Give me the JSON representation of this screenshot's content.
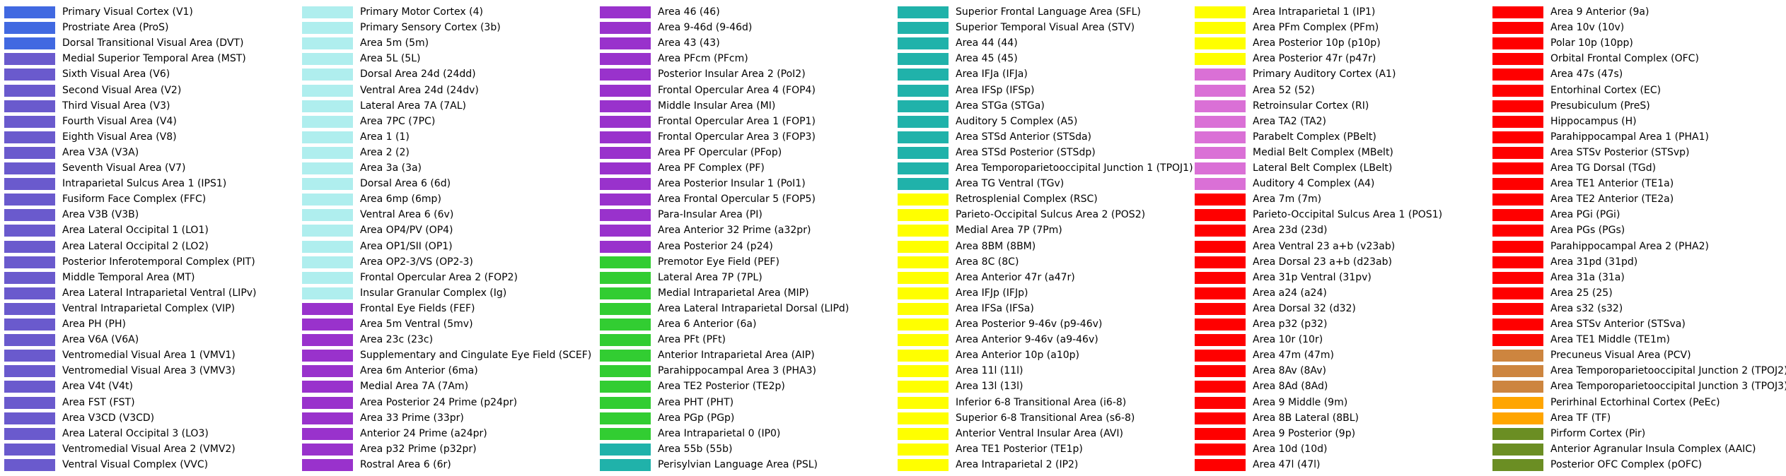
{
  "colors": {
    "royal_blue": "#4169e1",
    "slate_blue": "#6a5acd",
    "pale_turquoise": "#afeeee",
    "dark_orchid": "#9932cc",
    "lime_green": "#32cd32",
    "light_sea_green": "#20b2aa",
    "yellow": "#ffff00",
    "orchid": "#da70d6",
    "red": "#ff0000",
    "peru": "#cd853f",
    "orange": "#ffa500",
    "olive_drab": "#6b8e23"
  },
  "columns": [
    [
      {
        "label": "Primary Visual Cortex (V1)",
        "color": "#4169e1"
      },
      {
        "label": "Prostriate Area (ProS)",
        "color": "#4169e1"
      },
      {
        "label": "Dorsal Transitional Visual Area (DVT)",
        "color": "#4169e1"
      },
      {
        "label": "Medial Superior Temporal Area (MST)",
        "color": "#6a5acd"
      },
      {
        "label": "Sixth Visual Area (V6)",
        "color": "#6a5acd"
      },
      {
        "label": "Second Visual Area (V2)",
        "color": "#6a5acd"
      },
      {
        "label": "Third Visual Area (V3)",
        "color": "#6a5acd"
      },
      {
        "label": "Fourth Visual Area (V4)",
        "color": "#6a5acd"
      },
      {
        "label": "Eighth Visual Area (V8)",
        "color": "#6a5acd"
      },
      {
        "label": "Area V3A (V3A)",
        "color": "#6a5acd"
      },
      {
        "label": "Seventh Visual Area (V7)",
        "color": "#6a5acd"
      },
      {
        "label": "Intraparietal Sulcus Area 1 (IPS1)",
        "color": "#6a5acd"
      },
      {
        "label": "Fusiform Face Complex (FFC)",
        "color": "#6a5acd"
      },
      {
        "label": "Area V3B (V3B)",
        "color": "#6a5acd"
      },
      {
        "label": "Area Lateral Occipital 1 (LO1)",
        "color": "#6a5acd"
      },
      {
        "label": "Area Lateral Occipital 2 (LO2)",
        "color": "#6a5acd"
      },
      {
        "label": "Posterior Inferotemporal Complex (PIT)",
        "color": "#6a5acd"
      },
      {
        "label": "Middle Temporal Area (MT)",
        "color": "#6a5acd"
      },
      {
        "label": "Area Lateral Intraparietal Ventral (LIPv)",
        "color": "#6a5acd"
      },
      {
        "label": "Ventral Intraparietal Complex (VIP)",
        "color": "#6a5acd"
      },
      {
        "label": "Area PH (PH)",
        "color": "#6a5acd"
      },
      {
        "label": "Area V6A (V6A)",
        "color": "#6a5acd"
      },
      {
        "label": "Ventromedial Visual Area 1 (VMV1)",
        "color": "#6a5acd"
      },
      {
        "label": "Ventromedial Visual Area 3 (VMV3)",
        "color": "#6a5acd"
      },
      {
        "label": "Area V4t (V4t)",
        "color": "#6a5acd"
      },
      {
        "label": "Area FST (FST)",
        "color": "#6a5acd"
      },
      {
        "label": "Area V3CD (V3CD)",
        "color": "#6a5acd"
      },
      {
        "label": "Area Lateral Occipital 3 (LO3)",
        "color": "#6a5acd"
      },
      {
        "label": "Ventromedial Visual Area 2 (VMV2)",
        "color": "#6a5acd"
      },
      {
        "label": "Ventral Visual Complex (VVC)",
        "color": "#6a5acd"
      }
    ],
    [
      {
        "label": "Primary Motor Cortex (4)",
        "color": "#afeeee"
      },
      {
        "label": "Primary Sensory Cortex (3b)",
        "color": "#afeeee"
      },
      {
        "label": "Area 5m (5m)",
        "color": "#afeeee"
      },
      {
        "label": "Area 5L (5L)",
        "color": "#afeeee"
      },
      {
        "label": "Dorsal Area 24d (24dd)",
        "color": "#afeeee"
      },
      {
        "label": "Ventral Area 24d (24dv)",
        "color": "#afeeee"
      },
      {
        "label": "Lateral Area 7A (7AL)",
        "color": "#afeeee"
      },
      {
        "label": "Area 7PC (7PC)",
        "color": "#afeeee"
      },
      {
        "label": "Area 1 (1)",
        "color": "#afeeee"
      },
      {
        "label": "Area 2 (2)",
        "color": "#afeeee"
      },
      {
        "label": "Area 3a (3a)",
        "color": "#afeeee"
      },
      {
        "label": "Dorsal Area 6 (6d)",
        "color": "#afeeee"
      },
      {
        "label": "Area 6mp (6mp)",
        "color": "#afeeee"
      },
      {
        "label": "Ventral Area 6 (6v)",
        "color": "#afeeee"
      },
      {
        "label": "Area OP4/PV (OP4)",
        "color": "#afeeee"
      },
      {
        "label": "Area OP1/SII (OP1)",
        "color": "#afeeee"
      },
      {
        "label": "Area OP2-3/VS (OP2-3)",
        "color": "#afeeee"
      },
      {
        "label": "Frontal Opercular Area 2 (FOP2)",
        "color": "#afeeee"
      },
      {
        "label": "Insular Granular Complex (Ig)",
        "color": "#afeeee"
      },
      {
        "label": "Frontal Eye Fields (FEF)",
        "color": "#9932cc"
      },
      {
        "label": "Area 5m Ventral (5mv)",
        "color": "#9932cc"
      },
      {
        "label": "Area 23c (23c)",
        "color": "#9932cc"
      },
      {
        "label": "Supplementary and Cingulate Eye Field (SCEF)",
        "color": "#9932cc"
      },
      {
        "label": "Area 6m Anterior (6ma)",
        "color": "#9932cc"
      },
      {
        "label": "Medial Area 7A (7Am)",
        "color": "#9932cc"
      },
      {
        "label": "Area Posterior 24 Prime (p24pr)",
        "color": "#9932cc"
      },
      {
        "label": "Area 33 Prime (33pr)",
        "color": "#9932cc"
      },
      {
        "label": "Anterior 24 Prime (a24pr)",
        "color": "#9932cc"
      },
      {
        "label": "Area p32 Prime (p32pr)",
        "color": "#9932cc"
      },
      {
        "label": "Rostral Area 6 (6r)",
        "color": "#9932cc"
      }
    ],
    [
      {
        "label": "Area 46 (46)",
        "color": "#9932cc"
      },
      {
        "label": "Area 9-46d (9-46d)",
        "color": "#9932cc"
      },
      {
        "label": "Area 43 (43)",
        "color": "#9932cc"
      },
      {
        "label": "Area PFcm (PFcm)",
        "color": "#9932cc"
      },
      {
        "label": "Posterior Insular Area 2 (PoI2)",
        "color": "#9932cc"
      },
      {
        "label": "Frontal Opercular Area 4 (FOP4)",
        "color": "#9932cc"
      },
      {
        "label": "Middle Insular Area (MI)",
        "color": "#9932cc"
      },
      {
        "label": "Frontal Opercular Area 1 (FOP1)",
        "color": "#9932cc"
      },
      {
        "label": "Frontal Opercular Area 3 (FOP3)",
        "color": "#9932cc"
      },
      {
        "label": "Area PF Opercular (PFop)",
        "color": "#9932cc"
      },
      {
        "label": "Area PF Complex (PF)",
        "color": "#9932cc"
      },
      {
        "label": "Area Posterior Insular 1 (PoI1)",
        "color": "#9932cc"
      },
      {
        "label": "Area Frontal Opercular 5 (FOP5)",
        "color": "#9932cc"
      },
      {
        "label": "Para-Insular Area (PI)",
        "color": "#9932cc"
      },
      {
        "label": "Area Anterior 32 Prime (a32pr)",
        "color": "#9932cc"
      },
      {
        "label": "Area Posterior 24 (p24)",
        "color": "#9932cc"
      },
      {
        "label": "Premotor Eye Field (PEF)",
        "color": "#32cd32"
      },
      {
        "label": "Lateral Area 7P (7PL)",
        "color": "#32cd32"
      },
      {
        "label": "Medial Intraparietal Area (MIP)",
        "color": "#32cd32"
      },
      {
        "label": "Area Lateral Intraparietal Dorsal (LIPd)",
        "color": "#32cd32"
      },
      {
        "label": "Area 6 Anterior (6a)",
        "color": "#32cd32"
      },
      {
        "label": "Area PFt (PFt)",
        "color": "#32cd32"
      },
      {
        "label": "Anterior Intraparietal Area (AIP)",
        "color": "#32cd32"
      },
      {
        "label": "Parahippocampal Area 3 (PHA3)",
        "color": "#32cd32"
      },
      {
        "label": "Area TE2 Posterior (TE2p)",
        "color": "#32cd32"
      },
      {
        "label": "Area PHT (PHT)",
        "color": "#32cd32"
      },
      {
        "label": "Area PGp (PGp)",
        "color": "#32cd32"
      },
      {
        "label": "Area Intraparietal 0 (IP0)",
        "color": "#32cd32"
      },
      {
        "label": "Area 55b (55b)",
        "color": "#20b2aa"
      },
      {
        "label": "Perisylvian Language Area (PSL)",
        "color": "#20b2aa"
      }
    ],
    [
      {
        "label": "Superior Frontal Language Area (SFL)",
        "color": "#20b2aa"
      },
      {
        "label": "Superior Temporal Visual Area (STV)",
        "color": "#20b2aa"
      },
      {
        "label": "Area 44 (44)",
        "color": "#20b2aa"
      },
      {
        "label": "Area 45 (45)",
        "color": "#20b2aa"
      },
      {
        "label": "Area IFJa (IFJa)",
        "color": "#20b2aa"
      },
      {
        "label": "Area IFSp (IFSp)",
        "color": "#20b2aa"
      },
      {
        "label": "Area STGa (STGa)",
        "color": "#20b2aa"
      },
      {
        "label": "Auditory 5 Complex (A5)",
        "color": "#20b2aa"
      },
      {
        "label": "Area STSd Anterior (STSda)",
        "color": "#20b2aa"
      },
      {
        "label": "Area STSd Posterior (STSdp)",
        "color": "#20b2aa"
      },
      {
        "label": "Area Temporoparietooccipital Junction 1 (TPOJ1)",
        "color": "#20b2aa"
      },
      {
        "label": "Area TG Ventral (TGv)",
        "color": "#20b2aa"
      },
      {
        "label": "Retrosplenial Complex (RSC)",
        "color": "#ffff00"
      },
      {
        "label": "Parieto-Occipital Sulcus Area 2 (POS2)",
        "color": "#ffff00"
      },
      {
        "label": "Medial Area 7P (7Pm)",
        "color": "#ffff00"
      },
      {
        "label": "Area 8BM (8BM)",
        "color": "#ffff00"
      },
      {
        "label": "Area 8C (8C)",
        "color": "#ffff00"
      },
      {
        "label": "Area Anterior 47r (a47r)",
        "color": "#ffff00"
      },
      {
        "label": "Area IFJp (IFJp)",
        "color": "#ffff00"
      },
      {
        "label": "Area IFSa (IFSa)",
        "color": "#ffff00"
      },
      {
        "label": "Area Posterior 9-46v (p9-46v)",
        "color": "#ffff00"
      },
      {
        "label": "Area Anterior 9-46v (a9-46v)",
        "color": "#ffff00"
      },
      {
        "label": "Area Anterior 10p (a10p)",
        "color": "#ffff00"
      },
      {
        "label": "Area 11l (11l)",
        "color": "#ffff00"
      },
      {
        "label": "Area 13l (13l)",
        "color": "#ffff00"
      },
      {
        "label": "Inferior 6-8 Transitional Area (i6-8)",
        "color": "#ffff00"
      },
      {
        "label": "Superior 6-8 Transitional Area (s6-8)",
        "color": "#ffff00"
      },
      {
        "label": "Anterior Ventral Insular Area (AVI)",
        "color": "#ffff00"
      },
      {
        "label": "Area TE1 Posterior (TE1p)",
        "color": "#ffff00"
      },
      {
        "label": "Area Intraparietal 2 (IP2)",
        "color": "#ffff00"
      }
    ],
    [
      {
        "label": "Area Intraparietal 1 (IP1)",
        "color": "#ffff00"
      },
      {
        "label": "Area PFm Complex (PFm)",
        "color": "#ffff00"
      },
      {
        "label": "Area Posterior 10p (p10p)",
        "color": "#ffff00"
      },
      {
        "label": "Area Posterior 47r (p47r)",
        "color": "#ffff00"
      },
      {
        "label": "Primary Auditory Cortex (A1)",
        "color": "#da70d6"
      },
      {
        "label": "Area 52 (52)",
        "color": "#da70d6"
      },
      {
        "label": "Retroinsular Cortex (RI)",
        "color": "#da70d6"
      },
      {
        "label": "Area TA2 (TA2)",
        "color": "#da70d6"
      },
      {
        "label": "Parabelt Complex (PBelt)",
        "color": "#da70d6"
      },
      {
        "label": "Medial Belt Complex (MBelt)",
        "color": "#da70d6"
      },
      {
        "label": "Lateral Belt Complex (LBelt)",
        "color": "#da70d6"
      },
      {
        "label": "Auditory 4 Complex (A4)",
        "color": "#da70d6"
      },
      {
        "label": "Area 7m (7m)",
        "color": "#ff0000"
      },
      {
        "label": "Parieto-Occipital Sulcus Area 1 (POS1)",
        "color": "#ff0000"
      },
      {
        "label": "Area 23d (23d)",
        "color": "#ff0000"
      },
      {
        "label": "Area Ventral 23 a+b (v23ab)",
        "color": "#ff0000"
      },
      {
        "label": "Area Dorsal 23 a+b (d23ab)",
        "color": "#ff0000"
      },
      {
        "label": "Area 31p Ventral (31pv)",
        "color": "#ff0000"
      },
      {
        "label": "Area a24 (a24)",
        "color": "#ff0000"
      },
      {
        "label": "Area Dorsal 32 (d32)",
        "color": "#ff0000"
      },
      {
        "label": "Area p32 (p32)",
        "color": "#ff0000"
      },
      {
        "label": "Area 10r (10r)",
        "color": "#ff0000"
      },
      {
        "label": "Area 47m (47m)",
        "color": "#ff0000"
      },
      {
        "label": "Area 8Av (8Av)",
        "color": "#ff0000"
      },
      {
        "label": "Area 8Ad (8Ad)",
        "color": "#ff0000"
      },
      {
        "label": "Area 9 Middle (9m)",
        "color": "#ff0000"
      },
      {
        "label": "Area 8B Lateral (8BL)",
        "color": "#ff0000"
      },
      {
        "label": "Area 9 Posterior (9p)",
        "color": "#ff0000"
      },
      {
        "label": "Area 10d (10d)",
        "color": "#ff0000"
      },
      {
        "label": "Area 47l (47l)",
        "color": "#ff0000"
      }
    ],
    [
      {
        "label": "Area 9 Anterior (9a)",
        "color": "#ff0000"
      },
      {
        "label": "Area 10v (10v)",
        "color": "#ff0000"
      },
      {
        "label": "Polar 10p (10pp)",
        "color": "#ff0000"
      },
      {
        "label": "Orbital Frontal Complex (OFC)",
        "color": "#ff0000"
      },
      {
        "label": "Area 47s (47s)",
        "color": "#ff0000"
      },
      {
        "label": "Entorhinal Cortex (EC)",
        "color": "#ff0000"
      },
      {
        "label": "Presubiculum (PreS)",
        "color": "#ff0000"
      },
      {
        "label": "Hippocampus (H)",
        "color": "#ff0000"
      },
      {
        "label": "Parahippocampal Area 1 (PHA1)",
        "color": "#ff0000"
      },
      {
        "label": "Area STSv Posterior (STSvp)",
        "color": "#ff0000"
      },
      {
        "label": "Area TG Dorsal (TGd)",
        "color": "#ff0000"
      },
      {
        "label": "Area TE1 Anterior (TE1a)",
        "color": "#ff0000"
      },
      {
        "label": "Area TE2 Anterior (TE2a)",
        "color": "#ff0000"
      },
      {
        "label": "Area PGi (PGi)",
        "color": "#ff0000"
      },
      {
        "label": "Area PGs (PGs)",
        "color": "#ff0000"
      },
      {
        "label": "Parahippocampal Area 2 (PHA2)",
        "color": "#ff0000"
      },
      {
        "label": "Area 31pd (31pd)",
        "color": "#ff0000"
      },
      {
        "label": "Area 31a (31a)",
        "color": "#ff0000"
      },
      {
        "label": "Area 25 (25)",
        "color": "#ff0000"
      },
      {
        "label": "Area s32 (s32)",
        "color": "#ff0000"
      },
      {
        "label": "Area STSv Anterior (STSva)",
        "color": "#ff0000"
      },
      {
        "label": "Area TE1 Middle (TE1m)",
        "color": "#ff0000"
      },
      {
        "label": "Precuneus Visual Area (PCV)",
        "color": "#cd853f"
      },
      {
        "label": "Area Temporoparietooccipital Junction 2 (TPOJ2)",
        "color": "#cd853f"
      },
      {
        "label": "Area Temporoparietooccipital Junction 3 (TPOJ3)",
        "color": "#cd853f"
      },
      {
        "label": "Perirhinal Ectorhinal Cortex (PeEc)",
        "color": "#ffa500"
      },
      {
        "label": "Area TF (TF)",
        "color": "#ffa500"
      },
      {
        "label": "Pirform Cortex (Pir)",
        "color": "#6b8e23"
      },
      {
        "label": "Anterior Agranular Insula Complex (AAIC)",
        "color": "#6b8e23"
      },
      {
        "label": "Posterior OFC Complex (pOFC)",
        "color": "#6b8e23"
      }
    ]
  ]
}
